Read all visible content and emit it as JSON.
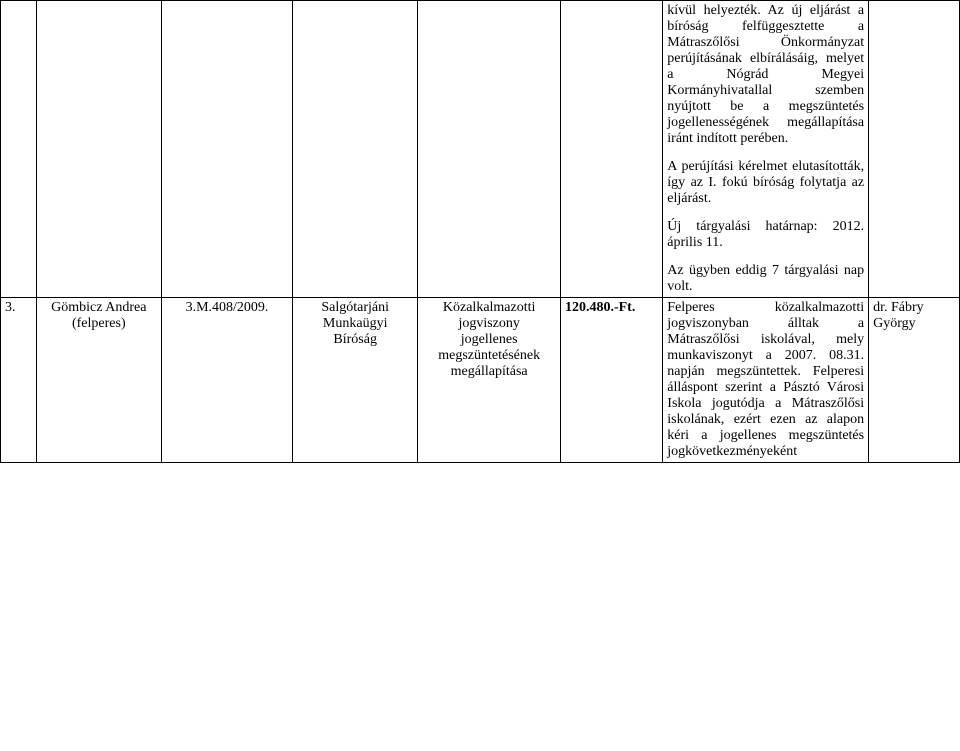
{
  "row1": {
    "col6_p1": "kívül helyezték. Az új eljárást a bíróság felfüggesztette a Mátraszőlősi Önkormányzat perújításának elbírálásáig, melyet a Nógrád Megyei Kormányhivatallal szemben nyújtott be a megszüntetés jogellenességének megállapítása iránt indított perében.",
    "col6_p2": "A perújítási kérelmet elutasították, így az I. fokú bíróság folytatja az eljárást.",
    "col6_p3": "Új tárgyalási határnap: 2012. április 11.",
    "col6_p4": "Az ügyben eddig 7 tárgyalási nap volt."
  },
  "row2": {
    "num": "3.",
    "plaintiff_name": "Gömbicz Andrea",
    "plaintiff_role": "(felperes)",
    "caseno": "3.M.408/2009.",
    "court_l1": "Salgótarjáni",
    "court_l2": "Munkaügyi",
    "court_l3": "Bíróság",
    "subject_l1": "Közalkalmazotti",
    "subject_l2": "jogviszony",
    "subject_l3": "jogellenes",
    "subject_l4": "megszüntetésének",
    "subject_l5": "megállapítása",
    "amount": "120.480.-Ft.",
    "desc": "Felperes közalkalmazotti jogviszonyban álltak a Mátraszőlősi iskolával, mely munkaviszonyt a 2007. 08.31. napján megszüntettek. Felperesi álláspont szerint a Pásztó Városi Iskola jogutódja a Mátraszőlősi iskolának, ezért ezen az alapon kéri a jogellenes megszüntetés jogkövetkezményeként",
    "judge_l1": "dr. Fábry",
    "judge_l2": "György"
  }
}
